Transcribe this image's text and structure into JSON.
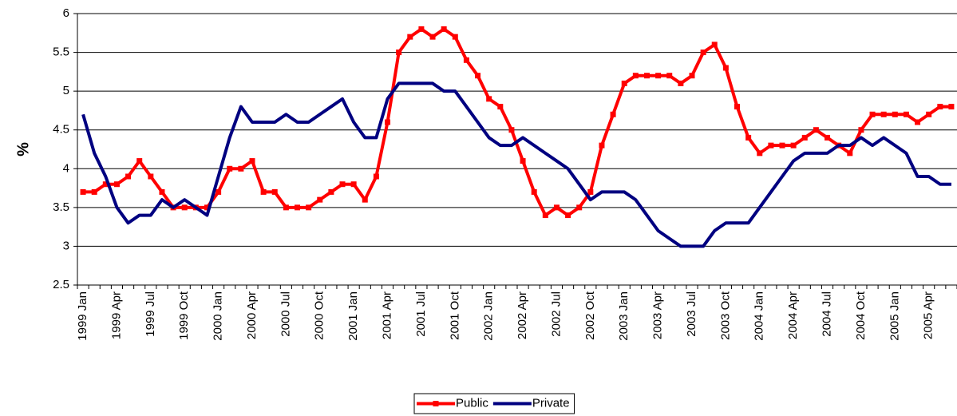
{
  "chart_data": {
    "type": "line",
    "y_label": "%",
    "categories": [
      "1999 Jan",
      null,
      null,
      "1999 Apr",
      null,
      null,
      "1999 Jul",
      null,
      null,
      "1999 Oct",
      null,
      null,
      "2000 Jan",
      null,
      null,
      "2000 Apr",
      null,
      null,
      "2000 Jul",
      null,
      null,
      "2000 Oct",
      null,
      null,
      "2001 Jan",
      null,
      null,
      "2001 Apr",
      null,
      null,
      "2001 Jul",
      null,
      null,
      "2001 Oct",
      null,
      null,
      "2002 Jan",
      null,
      null,
      "2002 Apr",
      null,
      null,
      "2002 Jul",
      null,
      null,
      "2002 Oct",
      null,
      null,
      "2003 Jan",
      null,
      null,
      "2003 Apr",
      null,
      null,
      "2003 Jul",
      null,
      null,
      "2003 Oct",
      null,
      null,
      "2004 Jan",
      null,
      null,
      "2004 Apr",
      null,
      null,
      "2004 Jul",
      null,
      null,
      "2004 Oct",
      null,
      null,
      "2005 Jan",
      null,
      null,
      "2005 Apr",
      null,
      null
    ],
    "series": [
      {
        "name": "Public",
        "color": "#ff0000",
        "marker": "square",
        "values": [
          3.7,
          3.7,
          3.8,
          3.8,
          3.9,
          4.1,
          3.9,
          3.7,
          3.5,
          3.5,
          3.5,
          3.5,
          3.7,
          4.0,
          4.0,
          4.1,
          3.7,
          3.7,
          3.5,
          3.5,
          3.5,
          3.6,
          3.7,
          3.8,
          3.8,
          3.6,
          3.9,
          4.6,
          5.5,
          5.7,
          5.8,
          5.7,
          5.8,
          5.7,
          5.4,
          5.2,
          4.9,
          4.8,
          4.5,
          4.1,
          3.7,
          3.4,
          3.5,
          3.4,
          3.5,
          3.7,
          4.3,
          4.7,
          5.1,
          5.2,
          5.2,
          5.2,
          5.2,
          5.1,
          5.2,
          5.5,
          5.6,
          5.3,
          4.8,
          4.4,
          4.2,
          4.3,
          4.3,
          4.3,
          4.4,
          4.5,
          4.4,
          4.3,
          4.2,
          4.5,
          4.7,
          4.7,
          4.7,
          4.7,
          4.6,
          4.7,
          4.8,
          4.8
        ]
      },
      {
        "name": "Private",
        "color": "#000080",
        "marker": "none",
        "values": [
          4.7,
          4.2,
          3.9,
          3.5,
          3.3,
          3.4,
          3.4,
          3.6,
          3.5,
          3.6,
          3.5,
          3.4,
          3.9,
          4.4,
          4.8,
          4.6,
          4.6,
          4.6,
          4.7,
          4.6,
          4.6,
          4.7,
          4.8,
          4.9,
          4.6,
          4.4,
          4.4,
          4.9,
          5.1,
          5.1,
          5.1,
          5.1,
          5.0,
          5.0,
          4.8,
          4.6,
          4.4,
          4.3,
          4.3,
          4.4,
          4.3,
          4.2,
          4.1,
          4.0,
          3.8,
          3.6,
          3.7,
          3.7,
          3.7,
          3.6,
          3.4,
          3.2,
          3.1,
          3.0,
          3.0,
          3.0,
          3.2,
          3.3,
          3.3,
          3.3,
          3.5,
          3.7,
          3.9,
          4.1,
          4.2,
          4.2,
          4.2,
          4.3,
          4.3,
          4.4,
          4.3,
          4.4,
          4.3,
          4.2,
          3.9,
          3.9,
          3.8,
          3.8
        ]
      }
    ],
    "ylim": [
      2.5,
      6
    ],
    "yticks": [
      2.5,
      3,
      3.5,
      4,
      4.5,
      5,
      5.5,
      6
    ],
    "grid": true,
    "legend": "bottom"
  }
}
